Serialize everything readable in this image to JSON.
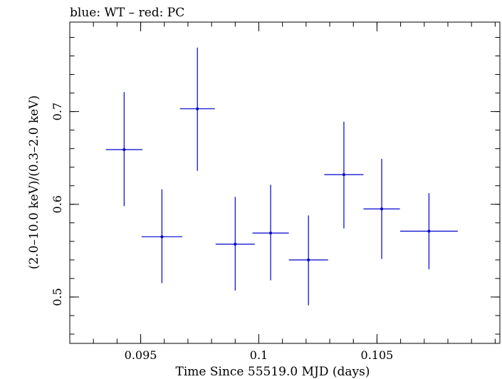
{
  "chart_data": {
    "type": "scatter",
    "title": "blue: WT – red: PC",
    "xlabel": "Time Since 55519.0 MJD (days)",
    "ylabel": "(2.0–10.0 keV)/(0.3–2.0 keV)",
    "xlim": [
      0.092,
      0.1102
    ],
    "ylim": [
      0.45,
      0.7965
    ],
    "x_ticks": [
      {
        "value": 0.095,
        "label": "0.095"
      },
      {
        "value": 0.1,
        "label": "0.1"
      },
      {
        "value": 0.105,
        "label": "0.105"
      }
    ],
    "y_ticks": [
      {
        "value": 0.5,
        "label": "0.5"
      },
      {
        "value": 0.6,
        "label": "0.6"
      },
      {
        "value": 0.7,
        "label": "0.7"
      }
    ],
    "x_minor_step": 0.001,
    "y_minor_step": 0.02,
    "grid": false,
    "series": [
      {
        "color": "#0000cc",
        "points": [
          {
            "x": 0.0943,
            "xerr": 0.00077,
            "y": 0.659,
            "yerr_low": 0.061,
            "yerr_high": 0.062
          },
          {
            "x": 0.0959,
            "xerr": 0.00086,
            "y": 0.565,
            "yerr_low": 0.05,
            "yerr_high": 0.051
          },
          {
            "x": 0.0974,
            "xerr": 0.00074,
            "y": 0.703,
            "yerr_low": 0.067,
            "yerr_high": 0.066
          },
          {
            "x": 0.099,
            "xerr": 0.00083,
            "y": 0.557,
            "yerr_low": 0.05,
            "yerr_high": 0.051
          },
          {
            "x": 0.1005,
            "xerr": 0.00077,
            "y": 0.569,
            "yerr_low": 0.051,
            "yerr_high": 0.052
          },
          {
            "x": 0.1021,
            "xerr": 0.00083,
            "y": 0.54,
            "yerr_low": 0.049,
            "yerr_high": 0.048
          },
          {
            "x": 0.1036,
            "xerr": 0.00083,
            "y": 0.632,
            "yerr_low": 0.058,
            "yerr_high": 0.057
          },
          {
            "x": 0.1052,
            "xerr": 0.00077,
            "y": 0.595,
            "yerr_low": 0.054,
            "yerr_high": 0.054
          },
          {
            "x": 0.1072,
            "xerr": 0.00122,
            "y": 0.571,
            "yerr_low": 0.041,
            "yerr_high": 0.041
          }
        ]
      }
    ]
  }
}
